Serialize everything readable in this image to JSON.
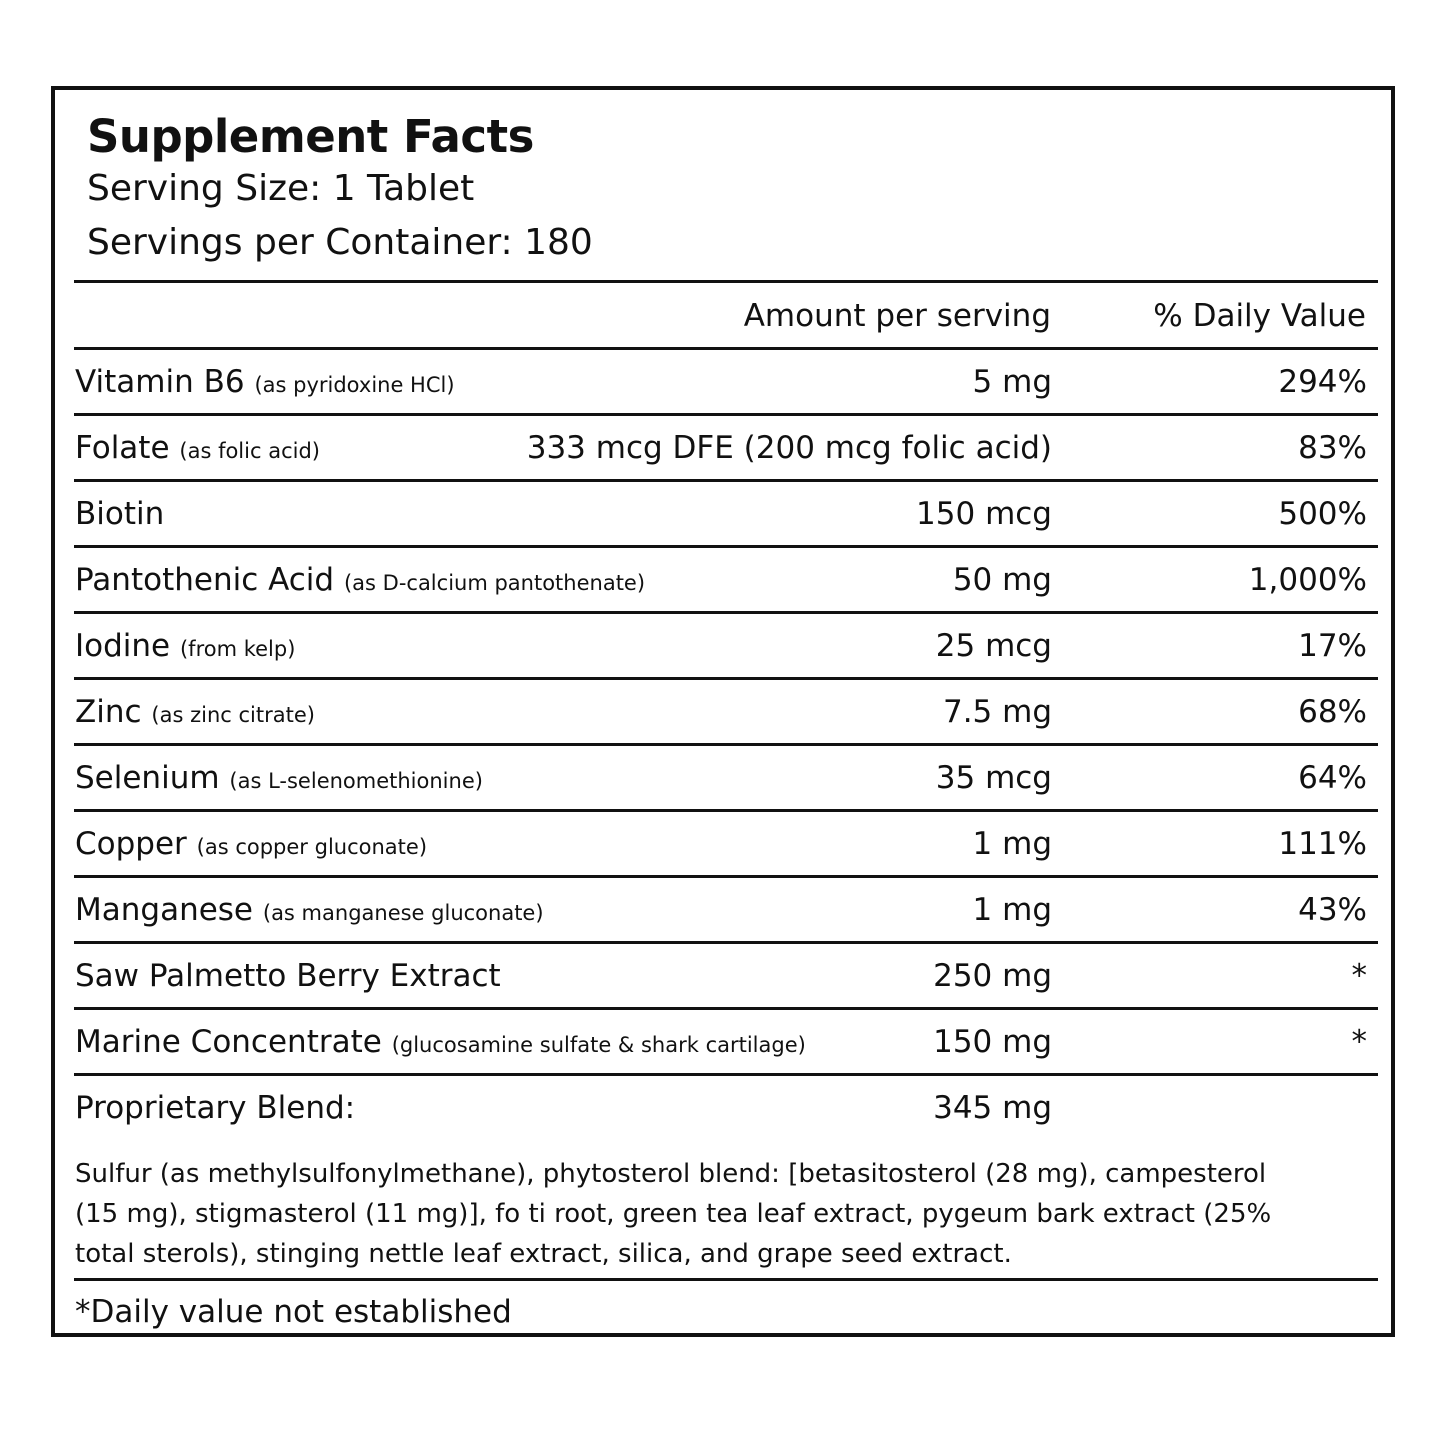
{
  "label": {
    "title": "Supplement Facts",
    "serving_size": "Serving Size: 1 Tablet",
    "servings_per_container": "Servings per Container: 180",
    "header_amount": "Amount per serving",
    "header_dv": "% Daily Value",
    "rows": [
      {
        "name": "Vitamin B6",
        "note": "(as pyridoxine HCl)",
        "amount": "5 mg",
        "dv": "294%"
      },
      {
        "name": "Folate",
        "note": "(as folic acid)",
        "amount": "333 mcg DFE (200 mcg folic acid)",
        "dv": "83%"
      },
      {
        "name": "Biotin",
        "note": "",
        "amount": "150 mcg",
        "dv": "500%"
      },
      {
        "name": "Pantothenic Acid",
        "note": "(as D-calcium pantothenate)",
        "amount": "50 mg",
        "dv": "1,000%"
      },
      {
        "name": "Iodine",
        "note": "(from kelp)",
        "amount": "25 mcg",
        "dv": "17%"
      },
      {
        "name": "Zinc",
        "note": "(as zinc citrate)",
        "amount": "7.5 mg",
        "dv": "68%"
      },
      {
        "name": "Selenium",
        "note": "(as L-selenomethionine)",
        "amount": "35 mcg",
        "dv": "64%"
      },
      {
        "name": "Copper",
        "note": "(as copper gluconate)",
        "amount": "1 mg",
        "dv": "111%"
      },
      {
        "name": "Manganese",
        "note": "(as manganese gluconate)",
        "amount": "1 mg",
        "dv": "43%"
      },
      {
        "name": "Saw Palmetto Berry Extract",
        "note": "",
        "amount": "250 mg",
        "dv": "*"
      },
      {
        "name": "Marine Concentrate",
        "note": "(glucosamine sulfate & shark cartilage)",
        "amount": "150 mg",
        "dv": "*"
      },
      {
        "name": "Proprietary Blend:",
        "note": "",
        "amount": "345 mg",
        "dv": ""
      }
    ],
    "blend_ingredients": "Sulfur (as methylsulfonylmethane), phytosterol blend: [betasitosterol (28 mg), campesterol (15 mg), stigmasterol (11 mg)], fo ti root, green tea leaf extract, pygeum bark extract (25% total sterols), stinging nettle leaf extract, silica, and grape seed extract.",
    "footnote": "*Daily value not established"
  }
}
